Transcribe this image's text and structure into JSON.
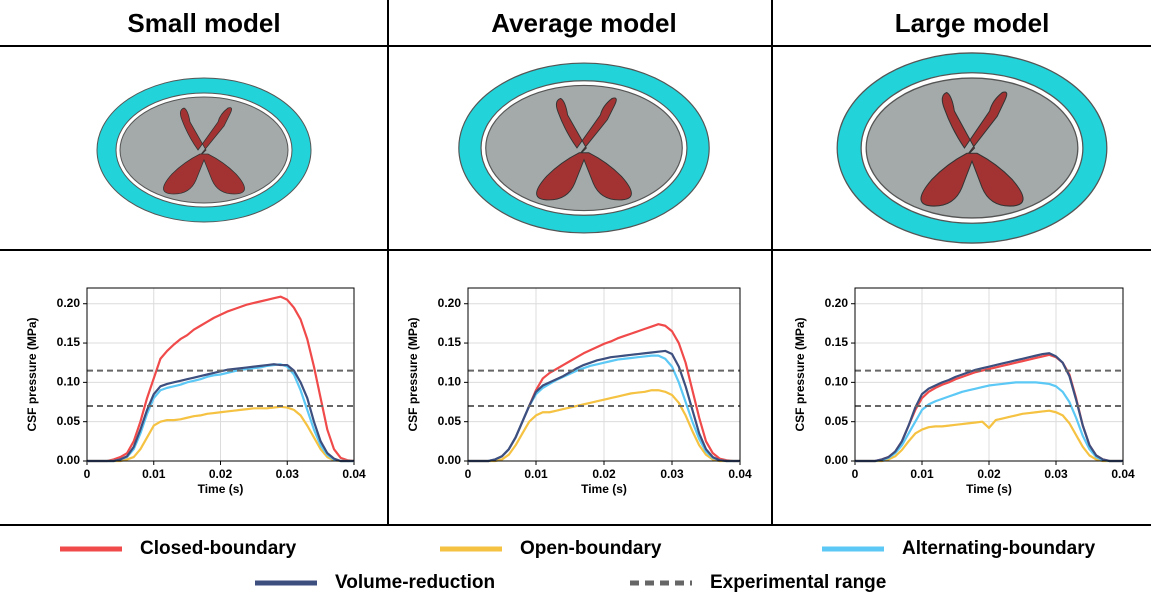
{
  "chart_data": [
    {
      "type": "line",
      "title": "Small model",
      "xlabel": "Time (s)",
      "ylabel": "CSF pressure (MPa)",
      "xlim": [
        0,
        0.04
      ],
      "ylim": [
        0,
        0.22
      ],
      "grid": true,
      "xticks": [
        0,
        0.01,
        0.02,
        0.03,
        0.04
      ],
      "yticks": [
        {
          "value": 0,
          "label": "0.00"
        },
        0.05,
        {
          "value": 0.1,
          "label": "0.10"
        },
        0.15,
        {
          "value": 0.2,
          "label": "0.20"
        }
      ],
      "reference_lines": [
        0.07,
        0.115
      ],
      "reference_color": "#666666",
      "x": [
        0,
        0.001,
        0.002,
        0.003,
        0.004,
        0.005,
        0.006,
        0.007,
        0.008,
        0.009,
        0.01,
        0.011,
        0.012,
        0.013,
        0.014,
        0.015,
        0.016,
        0.017,
        0.018,
        0.019,
        0.02,
        0.021,
        0.022,
        0.023,
        0.024,
        0.025,
        0.026,
        0.027,
        0.028,
        0.029,
        0.03,
        0.031,
        0.032,
        0.033,
        0.034,
        0.035,
        0.036,
        0.037,
        0.038,
        0.039,
        0.04
      ],
      "series": [
        {
          "color": "#f04a4a",
          "values": [
            0,
            0,
            0,
            0,
            0.002,
            0.005,
            0.01,
            0.025,
            0.05,
            0.08,
            0.105,
            0.13,
            0.14,
            0.148,
            0.155,
            0.16,
            0.167,
            0.172,
            0.177,
            0.182,
            0.186,
            0.19,
            0.193,
            0.196,
            0.199,
            0.201,
            0.203,
            0.205,
            0.207,
            0.209,
            0.205,
            0.195,
            0.18,
            0.155,
            0.12,
            0.08,
            0.04,
            0.015,
            0.004,
            0.001,
            0
          ]
        },
        {
          "color": "#f5c242",
          "values": [
            0,
            0,
            0,
            0,
            0,
            0,
            0.002,
            0.005,
            0.015,
            0.03,
            0.045,
            0.05,
            0.052,
            0.052,
            0.053,
            0.055,
            0.057,
            0.058,
            0.06,
            0.061,
            0.062,
            0.063,
            0.064,
            0.065,
            0.066,
            0.067,
            0.067,
            0.067,
            0.068,
            0.069,
            0.068,
            0.065,
            0.058,
            0.045,
            0.03,
            0.015,
            0.005,
            0.001,
            0,
            0,
            0
          ]
        },
        {
          "color": "#5bc8f5",
          "values": [
            0,
            0,
            0,
            0,
            0,
            0.002,
            0.005,
            0.015,
            0.035,
            0.06,
            0.08,
            0.09,
            0.093,
            0.095,
            0.097,
            0.1,
            0.102,
            0.104,
            0.107,
            0.109,
            0.11,
            0.112,
            0.114,
            0.116,
            0.117,
            0.118,
            0.119,
            0.121,
            0.122,
            0.123,
            0.12,
            0.11,
            0.09,
            0.065,
            0.04,
            0.02,
            0.008,
            0.002,
            0,
            0,
            0
          ]
        },
        {
          "color": "#3d4f7f",
          "values": [
            0,
            0,
            0,
            0,
            0,
            0.002,
            0.006,
            0.018,
            0.04,
            0.065,
            0.085,
            0.095,
            0.098,
            0.1,
            0.102,
            0.104,
            0.106,
            0.108,
            0.11,
            0.112,
            0.114,
            0.116,
            0.117,
            0.118,
            0.119,
            0.12,
            0.121,
            0.122,
            0.123,
            0.122,
            0.122,
            0.115,
            0.1,
            0.08,
            0.05,
            0.025,
            0.01,
            0.003,
            0,
            0,
            0
          ]
        }
      ]
    },
    {
      "type": "line",
      "title": "Average model",
      "xlabel": "Time (s)",
      "ylabel": "CSF pressure (MPa)",
      "xlim": [
        0,
        0.04
      ],
      "ylim": [
        0,
        0.22
      ],
      "grid": true,
      "xticks": [
        0,
        0.01,
        0.02,
        0.03,
        0.04
      ],
      "yticks": [
        {
          "value": 0,
          "label": "0.00"
        },
        0.05,
        {
          "value": 0.1,
          "label": "0.10"
        },
        0.15,
        {
          "value": 0.2,
          "label": "0.20"
        }
      ],
      "reference_lines": [
        0.07,
        0.115
      ],
      "reference_color": "#666666",
      "x": [
        0,
        0.001,
        0.002,
        0.003,
        0.004,
        0.005,
        0.006,
        0.007,
        0.008,
        0.009,
        0.01,
        0.011,
        0.012,
        0.013,
        0.014,
        0.015,
        0.016,
        0.017,
        0.018,
        0.019,
        0.02,
        0.021,
        0.022,
        0.023,
        0.024,
        0.025,
        0.026,
        0.027,
        0.028,
        0.029,
        0.03,
        0.031,
        0.032,
        0.033,
        0.034,
        0.035,
        0.036,
        0.037,
        0.038,
        0.039,
        0.04
      ],
      "series": [
        {
          "color": "#f04a4a",
          "values": [
            0,
            0,
            0,
            0,
            0.002,
            0.006,
            0.015,
            0.03,
            0.05,
            0.07,
            0.09,
            0.105,
            0.112,
            0.117,
            0.122,
            0.127,
            0.132,
            0.137,
            0.141,
            0.145,
            0.149,
            0.152,
            0.156,
            0.159,
            0.162,
            0.165,
            0.168,
            0.171,
            0.174,
            0.172,
            0.165,
            0.15,
            0.125,
            0.09,
            0.055,
            0.025,
            0.01,
            0.003,
            0.001,
            0,
            0
          ]
        },
        {
          "color": "#f5c242",
          "values": [
            0,
            0,
            0,
            0,
            0,
            0.002,
            0.008,
            0.02,
            0.035,
            0.05,
            0.058,
            0.062,
            0.062,
            0.064,
            0.066,
            0.068,
            0.07,
            0.072,
            0.074,
            0.076,
            0.078,
            0.08,
            0.082,
            0.084,
            0.086,
            0.087,
            0.088,
            0.09,
            0.09,
            0.088,
            0.084,
            0.074,
            0.058,
            0.038,
            0.02,
            0.008,
            0.002,
            0,
            0,
            0,
            0
          ]
        },
        {
          "color": "#5bc8f5",
          "values": [
            0,
            0,
            0,
            0,
            0.002,
            0.006,
            0.015,
            0.03,
            0.05,
            0.07,
            0.085,
            0.093,
            0.098,
            0.103,
            0.107,
            0.111,
            0.115,
            0.118,
            0.121,
            0.123,
            0.125,
            0.127,
            0.129,
            0.13,
            0.131,
            0.132,
            0.133,
            0.134,
            0.134,
            0.13,
            0.12,
            0.1,
            0.075,
            0.05,
            0.028,
            0.012,
            0.004,
            0.001,
            0,
            0,
            0
          ]
        },
        {
          "color": "#3d4f7f",
          "values": [
            0,
            0,
            0,
            0,
            0.002,
            0.006,
            0.015,
            0.03,
            0.05,
            0.07,
            0.088,
            0.096,
            0.1,
            0.104,
            0.108,
            0.113,
            0.118,
            0.122,
            0.125,
            0.128,
            0.13,
            0.132,
            0.133,
            0.134,
            0.135,
            0.136,
            0.137,
            0.138,
            0.139,
            0.14,
            0.136,
            0.12,
            0.095,
            0.065,
            0.035,
            0.015,
            0.005,
            0.001,
            0,
            0,
            0
          ]
        }
      ]
    },
    {
      "type": "line",
      "title": "Large model",
      "xlabel": "Time (s)",
      "ylabel": "CSF pressure (MPa)",
      "xlim": [
        0,
        0.04
      ],
      "ylim": [
        0,
        0.22
      ],
      "grid": true,
      "xticks": [
        0,
        0.01,
        0.02,
        0.03,
        0.04
      ],
      "yticks": [
        {
          "value": 0,
          "label": "0.00"
        },
        0.05,
        {
          "value": 0.1,
          "label": "0.10"
        },
        0.15,
        {
          "value": 0.2,
          "label": "0.20"
        }
      ],
      "reference_lines": [
        0.07,
        0.115
      ],
      "reference_color": "#666666",
      "x": [
        0,
        0.001,
        0.002,
        0.003,
        0.004,
        0.005,
        0.006,
        0.007,
        0.008,
        0.009,
        0.01,
        0.011,
        0.012,
        0.013,
        0.014,
        0.015,
        0.016,
        0.017,
        0.018,
        0.019,
        0.02,
        0.021,
        0.022,
        0.023,
        0.024,
        0.025,
        0.026,
        0.027,
        0.028,
        0.029,
        0.03,
        0.031,
        0.032,
        0.033,
        0.034,
        0.035,
        0.036,
        0.037,
        0.038,
        0.039,
        0.04
      ],
      "series": [
        {
          "color": "#f04a4a",
          "values": [
            0,
            0,
            0,
            0,
            0.002,
            0.005,
            0.012,
            0.025,
            0.045,
            0.065,
            0.08,
            0.088,
            0.093,
            0.097,
            0.1,
            0.104,
            0.107,
            0.11,
            0.113,
            0.115,
            0.117,
            0.119,
            0.121,
            0.123,
            0.125,
            0.127,
            0.129,
            0.131,
            0.133,
            0.135,
            0.132,
            0.125,
            0.11,
            0.08,
            0.045,
            0.02,
            0.007,
            0.002,
            0,
            0,
            0
          ]
        },
        {
          "color": "#f5c242",
          "values": [
            0,
            0,
            0,
            0,
            0,
            0.002,
            0.006,
            0.014,
            0.025,
            0.035,
            0.04,
            0.043,
            0.044,
            0.044,
            0.045,
            0.046,
            0.047,
            0.048,
            0.049,
            0.05,
            0.042,
            0.052,
            0.054,
            0.056,
            0.058,
            0.06,
            0.061,
            0.062,
            0.063,
            0.064,
            0.062,
            0.058,
            0.048,
            0.033,
            0.018,
            0.007,
            0.002,
            0,
            0,
            0,
            0
          ]
        },
        {
          "color": "#5bc8f5",
          "values": [
            0,
            0,
            0,
            0,
            0.001,
            0.004,
            0.01,
            0.02,
            0.035,
            0.05,
            0.065,
            0.072,
            0.076,
            0.079,
            0.082,
            0.085,
            0.088,
            0.09,
            0.092,
            0.094,
            0.096,
            0.097,
            0.098,
            0.099,
            0.1,
            0.1,
            0.1,
            0.1,
            0.099,
            0.098,
            0.095,
            0.088,
            0.075,
            0.055,
            0.032,
            0.015,
            0.005,
            0.001,
            0,
            0,
            0
          ]
        },
        {
          "color": "#3d4f7f",
          "values": [
            0,
            0,
            0,
            0,
            0.002,
            0.005,
            0.012,
            0.025,
            0.045,
            0.068,
            0.085,
            0.092,
            0.096,
            0.1,
            0.103,
            0.107,
            0.11,
            0.113,
            0.116,
            0.118,
            0.12,
            0.122,
            0.124,
            0.126,
            0.128,
            0.13,
            0.132,
            0.134,
            0.136,
            0.137,
            0.133,
            0.125,
            0.108,
            0.078,
            0.045,
            0.02,
            0.007,
            0.002,
            0,
            0,
            0
          ]
        }
      ]
    }
  ],
  "legend": [
    {
      "name": "Closed-boundary",
      "color": "#f04a4a",
      "style": "solid"
    },
    {
      "name": "Open-boundary",
      "color": "#f5c242",
      "style": "solid"
    },
    {
      "name": "Alternating-boundary",
      "color": "#5bc8f5",
      "style": "solid"
    },
    {
      "name": "Volume-reduction",
      "color": "#3d4f7f",
      "style": "solid"
    },
    {
      "name": "Experimental range",
      "color": "#666666",
      "style": "dashed"
    }
  ]
}
